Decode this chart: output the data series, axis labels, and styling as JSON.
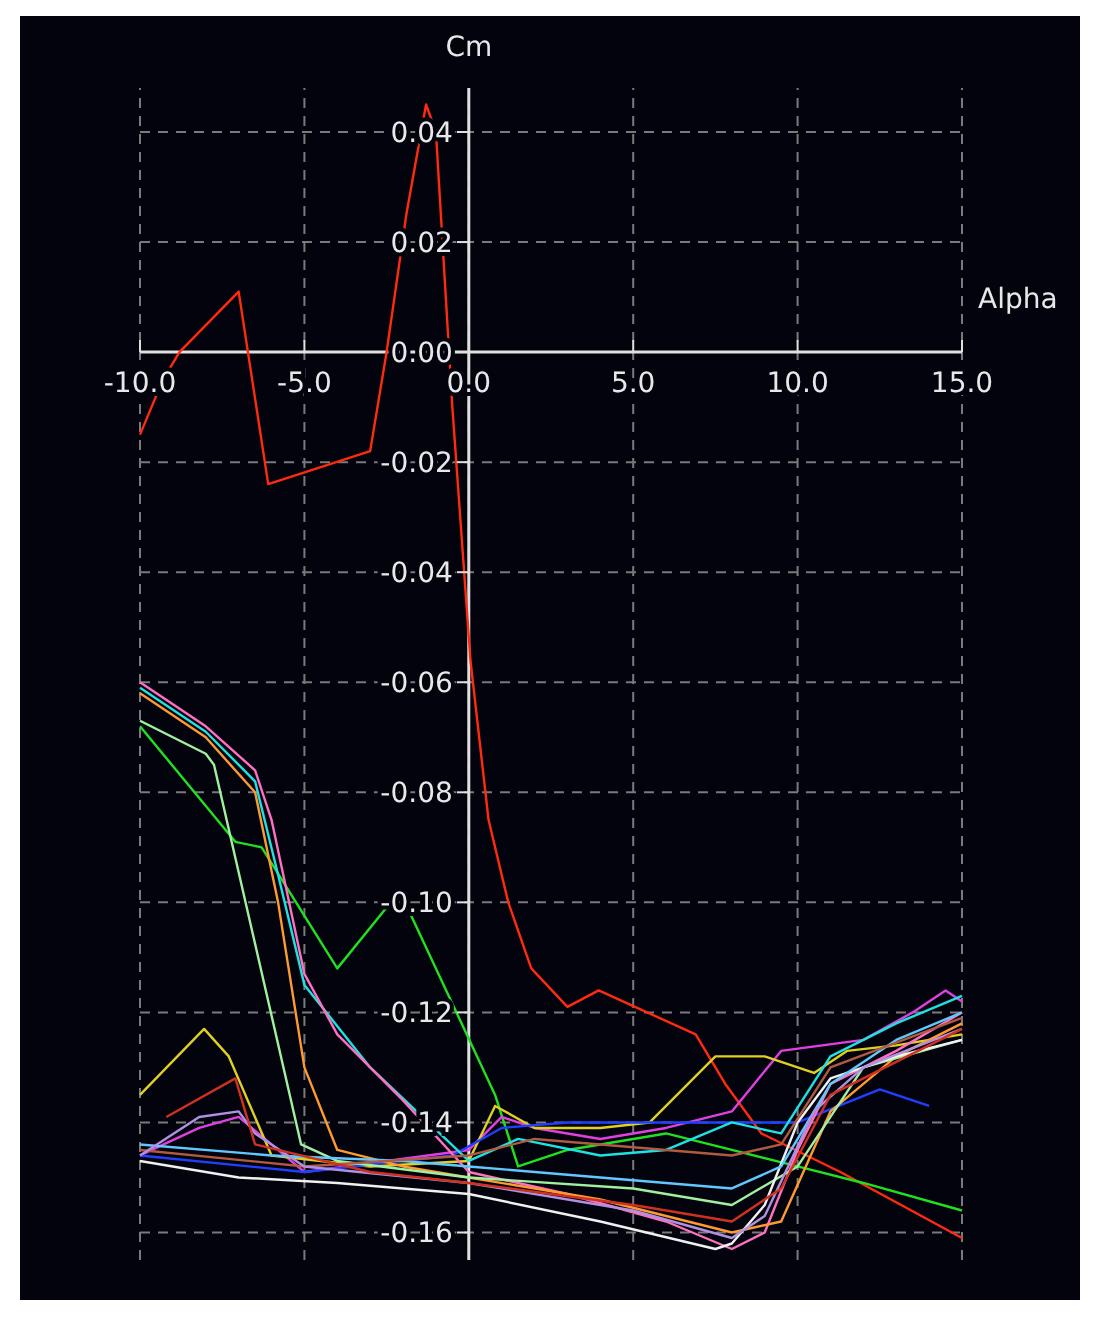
{
  "chart_data": {
    "type": "line",
    "xlabel": "Alpha",
    "ylabel": "Cm",
    "xlim": [
      -10,
      15
    ],
    "ylim": [
      -0.165,
      0.048
    ],
    "xticks": [
      {
        "value": -10,
        "label": "-10.0"
      },
      {
        "value": -5,
        "label": "-5.0"
      },
      {
        "value": 0,
        "label": "0.0"
      },
      {
        "value": 5,
        "label": "5.0"
      },
      {
        "value": 10,
        "label": "10.0"
      },
      {
        "value": 15,
        "label": "15.0"
      }
    ],
    "yticks": [
      {
        "value": 0.04,
        "label": "0.04"
      },
      {
        "value": 0.02,
        "label": "0.02"
      },
      {
        "value": 0,
        "label": "0.00"
      },
      {
        "value": -0.02,
        "label": "-0.02"
      },
      {
        "value": -0.04,
        "label": "-0.04"
      },
      {
        "value": -0.06,
        "label": "-0.06"
      },
      {
        "value": -0.08,
        "label": "-0.08"
      },
      {
        "value": -0.1,
        "label": "-0.10"
      },
      {
        "value": -0.12,
        "label": "-0.12"
      },
      {
        "value": -0.14,
        "label": "-0.14"
      },
      {
        "value": -0.16,
        "label": "-0.16"
      }
    ],
    "grid": true,
    "marker": "none",
    "line_style": "solid",
    "series": [
      {
        "color": "#ff2a10",
        "x": [
          -10,
          -9.3,
          -8.8,
          -7.0,
          -6.1,
          -3.0,
          -2.5,
          -1.9,
          -1.3,
          -1.0,
          -0.5,
          0.05,
          0.6,
          1.2,
          1.9,
          3.0,
          3.95,
          6.9,
          7.8,
          8.9,
          11.3,
          15
        ],
        "values": [
          -0.015,
          -0.005,
          0.0,
          0.011,
          -0.024,
          -0.018,
          0.0,
          0.025,
          0.045,
          0.04,
          -0.01,
          -0.056,
          -0.085,
          -0.1,
          -0.112,
          -0.119,
          -0.116,
          -0.124,
          -0.133,
          -0.142,
          -0.149,
          -0.161
        ]
      },
      {
        "color": "#20e020",
        "x": [
          -10,
          -7.1,
          -6.3,
          -4.0,
          -2.1,
          0.8,
          1.5,
          3,
          6,
          8,
          10,
          12,
          15
        ],
        "values": [
          -0.068,
          -0.089,
          -0.09,
          -0.112,
          -0.098,
          -0.135,
          -0.148,
          -0.145,
          -0.142,
          -0.145,
          -0.148,
          -0.151,
          -0.156
        ]
      },
      {
        "color": "#e040e0",
        "x": [
          -10,
          -8.2,
          -7,
          -5,
          0,
          1,
          2,
          4,
          6,
          8,
          9.5,
          12,
          13.5,
          14.5,
          15
        ],
        "values": [
          -0.146,
          -0.141,
          -0.139,
          -0.149,
          -0.145,
          -0.139,
          -0.141,
          -0.143,
          -0.141,
          -0.138,
          -0.127,
          -0.125,
          -0.12,
          -0.116,
          -0.118
        ]
      },
      {
        "color": "#e0d020",
        "x": [
          -10,
          -8.05,
          -7.3,
          -6,
          -3,
          0,
          0.8,
          2,
          4,
          5.5,
          7.5,
          9,
          10.5,
          11.5,
          13,
          15
        ],
        "values": [
          -0.135,
          -0.123,
          -0.128,
          -0.146,
          -0.148,
          -0.147,
          -0.137,
          -0.141,
          -0.141,
          -0.14,
          -0.128,
          -0.128,
          -0.131,
          -0.127,
          -0.126,
          -0.124
        ]
      },
      {
        "color": "#2040ff",
        "x": [
          -10,
          -5,
          -0.5,
          1,
          3,
          7,
          10,
          12.5,
          14
        ],
        "values": [
          -0.146,
          -0.149,
          -0.146,
          -0.141,
          -0.14,
          -0.14,
          -0.14,
          -0.134,
          -0.137
        ]
      },
      {
        "color": "#20e0e0",
        "x": [
          -10,
          -8,
          -6.5,
          -5.8,
          -5,
          -3,
          0,
          1.5,
          4,
          6,
          8,
          9.5,
          11,
          13,
          15
        ],
        "values": [
          -0.061,
          -0.069,
          -0.078,
          -0.095,
          -0.115,
          -0.13,
          -0.147,
          -0.143,
          -0.146,
          -0.145,
          -0.14,
          -0.142,
          -0.128,
          -0.122,
          -0.117
        ]
      },
      {
        "color": "#ff70c0",
        "x": [
          -10,
          -8,
          -6.5,
          -6,
          -5,
          -4,
          -2,
          0,
          3,
          6,
          8,
          9,
          10,
          11,
          13,
          15
        ],
        "values": [
          -0.06,
          -0.068,
          -0.076,
          -0.085,
          -0.113,
          -0.124,
          -0.136,
          -0.149,
          -0.153,
          -0.158,
          -0.163,
          -0.16,
          -0.145,
          -0.133,
          -0.127,
          -0.12
        ]
      },
      {
        "color": "#ff9a30",
        "x": [
          -10,
          -8,
          -6.5,
          -5.8,
          -5,
          -4,
          -2,
          0,
          4,
          8,
          9.5,
          11,
          13,
          15
        ],
        "values": [
          -0.062,
          -0.07,
          -0.08,
          -0.1,
          -0.13,
          -0.145,
          -0.148,
          -0.15,
          -0.154,
          -0.16,
          -0.158,
          -0.138,
          -0.128,
          -0.122
        ]
      },
      {
        "color": "#a0f0a0",
        "x": [
          -10,
          -8,
          -7.75,
          -5.1,
          -4,
          0,
          5,
          8,
          10,
          12,
          15
        ],
        "values": [
          -0.067,
          -0.073,
          -0.075,
          -0.144,
          -0.147,
          -0.15,
          -0.152,
          -0.155,
          -0.148,
          -0.13,
          -0.125
        ]
      },
      {
        "color": "#f0f0f0",
        "x": [
          -10,
          -7,
          -4,
          0,
          4,
          7.5,
          8,
          9,
          10,
          11,
          13,
          15
        ],
        "values": [
          -0.147,
          -0.15,
          -0.151,
          -0.153,
          -0.158,
          -0.163,
          -0.162,
          -0.155,
          -0.14,
          -0.132,
          -0.128,
          -0.125
        ]
      },
      {
        "color": "#60c8ff",
        "x": [
          -10,
          -6,
          -2,
          0,
          4,
          8,
          9.5,
          11,
          13,
          15
        ],
        "values": [
          -0.144,
          -0.146,
          -0.147,
          -0.148,
          -0.15,
          -0.152,
          -0.148,
          -0.133,
          -0.125,
          -0.12
        ]
      },
      {
        "color": "#b05a40",
        "x": [
          -10,
          -5,
          0,
          2,
          4,
          8,
          9.5,
          11,
          15
        ],
        "values": [
          -0.145,
          -0.148,
          -0.146,
          -0.143,
          -0.144,
          -0.146,
          -0.144,
          -0.13,
          -0.121
        ]
      },
      {
        "color": "#b090e0",
        "x": [
          -10,
          -8.2,
          -7,
          -6.5,
          -5,
          0,
          5,
          8,
          9,
          10.5,
          12,
          15
        ],
        "values": [
          -0.146,
          -0.139,
          -0.138,
          -0.142,
          -0.148,
          -0.151,
          -0.156,
          -0.161,
          -0.157,
          -0.138,
          -0.13,
          -0.123
        ]
      },
      {
        "color": "#d03020",
        "x": [
          -9.2,
          -7.1,
          -6.5,
          -3,
          0,
          5,
          8,
          9.5,
          11,
          15
        ],
        "values": [
          -0.139,
          -0.132,
          -0.144,
          -0.149,
          -0.151,
          -0.155,
          -0.158,
          -0.152,
          -0.135,
          -0.123
        ]
      }
    ]
  }
}
